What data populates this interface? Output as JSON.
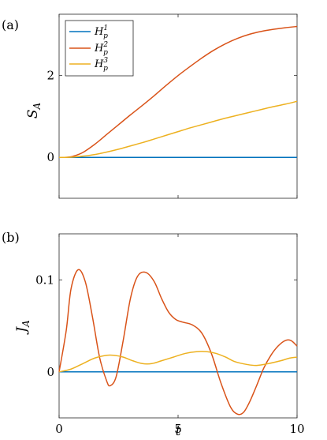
{
  "figure": {
    "panels": [
      {
        "label": "(a)"
      },
      {
        "label": "(b)"
      }
    ]
  },
  "legend": {
    "entries": [
      {
        "base": "H",
        "sub": "p",
        "sup": "1",
        "color": "#0072BD"
      },
      {
        "base": "H",
        "sub": "p",
        "sup": "2",
        "color": "#D95319"
      },
      {
        "base": "H",
        "sub": "p",
        "sup": "3",
        "color": "#EDB120"
      }
    ],
    "placement": "top-left"
  },
  "chart_data": [
    {
      "type": "line",
      "ylabel": {
        "base": "S",
        "sub": "A"
      },
      "xlim": [
        0,
        10
      ],
      "ylim": [
        -1,
        3.5
      ],
      "yticks": [
        0,
        2
      ],
      "ytick_labels": [
        "0",
        "2"
      ],
      "xticks": [
        0,
        5,
        10
      ],
      "grid": false,
      "series": [
        {
          "name": "H_p^1",
          "color": "#0072BD",
          "x": [
            0,
            10
          ],
          "y": [
            0,
            0
          ]
        },
        {
          "name": "H_p^2",
          "color": "#D95319",
          "x": [
            0,
            0.3,
            0.6,
            1.0,
            1.5,
            2,
            2.5,
            3,
            3.5,
            4,
            4.5,
            5,
            5.5,
            6,
            6.5,
            7,
            7.5,
            8,
            8.5,
            9,
            9.5,
            10
          ],
          "y": [
            0,
            0.002,
            0.03,
            0.12,
            0.32,
            0.56,
            0.8,
            1.04,
            1.27,
            1.51,
            1.76,
            2.0,
            2.22,
            2.43,
            2.62,
            2.78,
            2.91,
            3.01,
            3.08,
            3.13,
            3.17,
            3.2
          ]
        },
        {
          "name": "H_p^3",
          "color": "#EDB120",
          "x": [
            0,
            0.5,
            1,
            1.5,
            2,
            2.5,
            3,
            3.5,
            4,
            4.5,
            5,
            5.5,
            6,
            6.5,
            7,
            7.5,
            8,
            8.5,
            9,
            9.5,
            10
          ],
          "y": [
            0,
            0.005,
            0.03,
            0.07,
            0.13,
            0.2,
            0.28,
            0.36,
            0.45,
            0.54,
            0.63,
            0.72,
            0.8,
            0.88,
            0.96,
            1.03,
            1.1,
            1.17,
            1.24,
            1.3,
            1.37
          ]
        }
      ]
    },
    {
      "type": "line",
      "xlabel": "t",
      "ylabel": {
        "base": "J",
        "sub": "A"
      },
      "xlim": [
        0,
        10
      ],
      "ylim": [
        -0.05,
        0.15
      ],
      "yticks": [
        0,
        0.1
      ],
      "ytick_labels": [
        "0",
        "0.1"
      ],
      "xticks": [
        0,
        5,
        10
      ],
      "xtick_labels": [
        "0",
        "5",
        "10"
      ],
      "grid": false,
      "series": [
        {
          "name": "H_p^1",
          "color": "#0072BD",
          "x": [
            0,
            10
          ],
          "y": [
            0,
            0
          ]
        },
        {
          "name": "H_p^2",
          "color": "#D95319",
          "x": [
            0,
            0.3,
            0.5,
            0.8,
            1.1,
            1.4,
            1.7,
            2.0,
            2.15,
            2.4,
            2.7,
            3.0,
            3.3,
            3.65,
            4.0,
            4.3,
            4.6,
            4.9,
            5.2,
            5.6,
            6.0,
            6.4,
            6.8,
            7.2,
            7.5,
            7.75,
            8.0,
            8.3,
            8.6,
            8.9,
            9.2,
            9.5,
            9.75,
            10
          ],
          "y": [
            0,
            0.045,
            0.09,
            0.111,
            0.098,
            0.06,
            0.016,
            -0.01,
            -0.015,
            -0.005,
            0.035,
            0.08,
            0.104,
            0.108,
            0.098,
            0.08,
            0.065,
            0.057,
            0.054,
            0.051,
            0.042,
            0.02,
            -0.012,
            -0.038,
            -0.046,
            -0.044,
            -0.033,
            -0.015,
            0.004,
            0.018,
            0.028,
            0.034,
            0.034,
            0.028
          ]
        },
        {
          "name": "H_p^3",
          "color": "#EDB120",
          "x": [
            0,
            0.5,
            1.0,
            1.5,
            2.0,
            2.3,
            2.7,
            3.1,
            3.5,
            3.9,
            4.3,
            4.8,
            5.3,
            5.8,
            6.2,
            6.6,
            7.0,
            7.4,
            7.9,
            8.3,
            8.8,
            9.3,
            9.7,
            10
          ],
          "y": [
            0,
            0.003,
            0.009,
            0.015,
            0.018,
            0.018,
            0.016,
            0.012,
            0.009,
            0.009,
            0.012,
            0.016,
            0.02,
            0.022,
            0.022,
            0.02,
            0.016,
            0.011,
            0.008,
            0.007,
            0.009,
            0.012,
            0.015,
            0.016
          ]
        }
      ]
    }
  ]
}
